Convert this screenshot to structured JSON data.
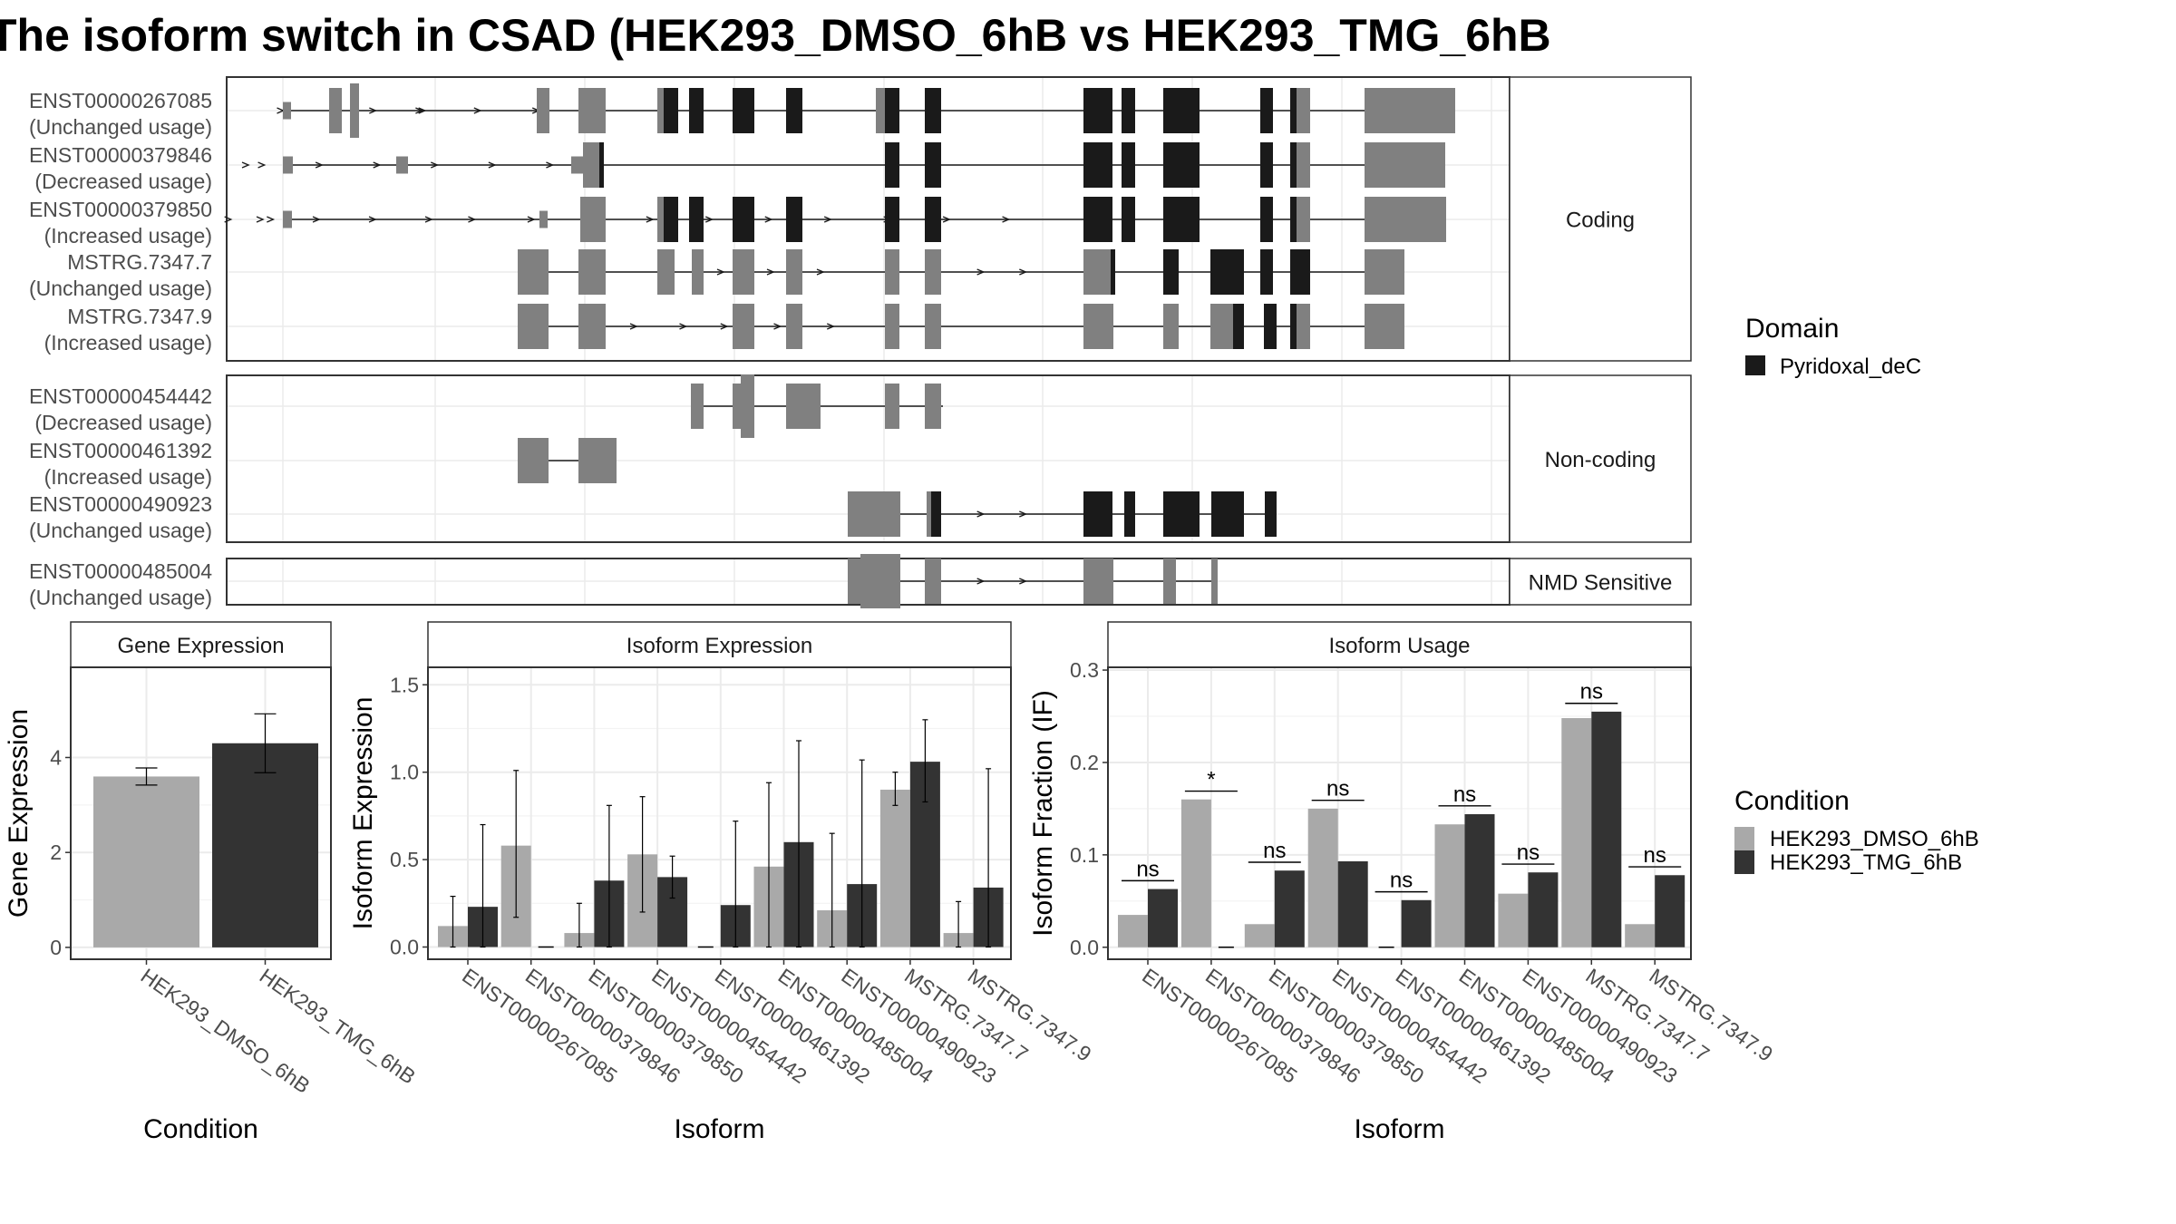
{
  "title": "The isoform switch in CSAD (HEK293_DMSO_6hB vs HEK293_TMG_6hB",
  "colors": {
    "domain": "#1a1a1a",
    "exon": "#808080",
    "dmso": "#a9a9a9",
    "tmg": "#333333"
  },
  "structure": {
    "panels": [
      {
        "label": "Coding",
        "transcripts": [
          {
            "id": "ENST00000267085",
            "usage": "(Unchanged usage)"
          },
          {
            "id": "ENST00000379846",
            "usage": "(Decreased usage)"
          },
          {
            "id": "ENST00000379850",
            "usage": "(Increased usage)"
          },
          {
            "id": "MSTRG.7347.7",
            "usage": "(Unchanged usage)"
          },
          {
            "id": "MSTRG.7347.9",
            "usage": "(Increased usage)"
          }
        ]
      },
      {
        "label": "Non-coding",
        "transcripts": [
          {
            "id": "ENST00000454442",
            "usage": "(Decreased usage)"
          },
          {
            "id": "ENST00000461392",
            "usage": "(Increased usage)"
          },
          {
            "id": "ENST00000490923",
            "usage": "(Unchanged usage)"
          }
        ]
      },
      {
        "label": "NMD Sensitive",
        "transcripts": [
          {
            "id": "ENST00000485004",
            "usage": "(Unchanged usage)"
          }
        ]
      }
    ]
  },
  "legend_domain": {
    "title": "Domain",
    "items": [
      "Pyridoxal_deC"
    ]
  },
  "legend_condition": {
    "title": "Condition",
    "items": [
      "HEK293_DMSO_6hB",
      "HEK293_TMG_6hB"
    ]
  },
  "chart_data": [
    {
      "type": "bar",
      "title": "Gene Expression",
      "xlabel": "Condition",
      "ylabel": "Gene Expression",
      "categories": [
        "HEK293_DMSO_6hB",
        "HEK293_TMG_6hB"
      ],
      "values": [
        3.6,
        4.3
      ],
      "errors": [
        [
          3.42,
          3.78
        ],
        [
          3.68,
          4.92
        ]
      ],
      "yticks": [
        0,
        2,
        4
      ],
      "ylim": [
        -0.25,
        5.9
      ],
      "grid": true
    },
    {
      "type": "bar",
      "title": "Isoform Expression",
      "xlabel": "Isoform",
      "ylabel": "Isoform Expression",
      "categories": [
        "ENST00000267085",
        "ENST00000379846",
        "ENST00000379850",
        "ENST00000454442",
        "ENST00000461392",
        "ENST00000485004",
        "ENST00000490923",
        "MSTRG.7347.7",
        "MSTRG.7347.9"
      ],
      "series": [
        {
          "name": "HEK293_DMSO_6hB",
          "values": [
            0.12,
            0.58,
            0.08,
            0.53,
            0.0,
            0.46,
            0.21,
            0.9,
            0.08
          ],
          "err_low": [
            0.0,
            0.17,
            0.0,
            0.2,
            0.0,
            0.0,
            0.0,
            0.81,
            0.0
          ],
          "err_high": [
            0.29,
            1.01,
            0.25,
            0.86,
            0.0,
            0.94,
            0.65,
            1.0,
            0.26
          ]
        },
        {
          "name": "HEK293_TMG_6hB",
          "values": [
            0.23,
            0.0,
            0.38,
            0.4,
            0.24,
            0.6,
            0.36,
            1.06,
            0.34
          ],
          "err_low": [
            0.0,
            0.0,
            0.0,
            0.28,
            0.0,
            0.0,
            0.0,
            0.83,
            0.0
          ],
          "err_high": [
            0.7,
            0.0,
            0.81,
            0.52,
            0.72,
            1.18,
            1.07,
            1.3,
            1.02
          ]
        }
      ],
      "yticks": [
        0.0,
        0.5,
        1.0,
        1.5
      ],
      "ylim": [
        -0.07,
        1.6
      ],
      "grid": true
    },
    {
      "type": "bar",
      "title": "Isoform Usage",
      "xlabel": "Isoform",
      "ylabel": "Isoform Fraction (IF)",
      "categories": [
        "ENST00000267085",
        "ENST00000379846",
        "ENST00000379850",
        "ENST00000454442",
        "ENST00000461392",
        "ENST00000485004",
        "ENST00000490923",
        "MSTRG.7347.7",
        "MSTRG.7347.9"
      ],
      "series": [
        {
          "name": "HEK293_DMSO_6hB",
          "values": [
            0.035,
            0.16,
            0.025,
            0.15,
            0.0,
            0.133,
            0.058,
            0.248,
            0.025
          ]
        },
        {
          "name": "HEK293_TMG_6hB",
          "values": [
            0.063,
            0.0,
            0.083,
            0.093,
            0.051,
            0.144,
            0.081,
            0.255,
            0.078
          ]
        }
      ],
      "significance": [
        "ns",
        "*",
        "ns",
        "ns",
        "ns",
        "ns",
        "ns",
        "ns",
        "ns"
      ],
      "yticks": [
        0.0,
        0.1,
        0.2,
        0.3
      ],
      "ylim": [
        -0.013,
        0.303
      ],
      "grid": true
    }
  ]
}
